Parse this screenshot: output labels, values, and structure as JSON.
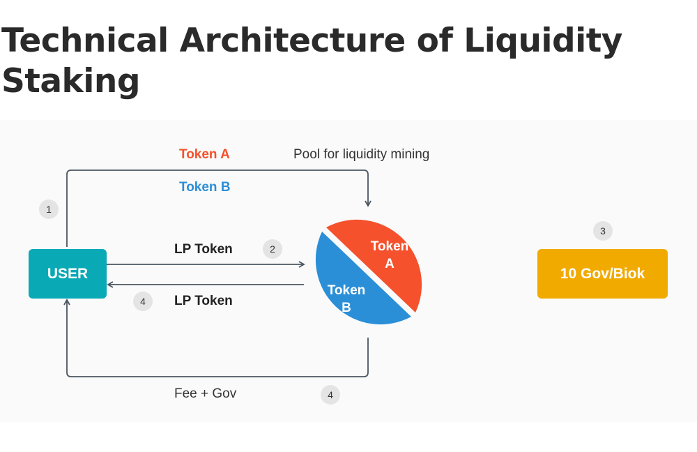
{
  "title": "Technical Architecture of Liquidity Staking",
  "labels": {
    "token_a": "Token A",
    "token_b": "Token B",
    "pool": "Pool for liquidity mining",
    "lp_token_out": "LP Token",
    "lp_token_in": "LP Token",
    "fee_gov": "Fee + Gov"
  },
  "badges": {
    "step1": "1",
    "step2": "2",
    "step3": "3",
    "step4a": "4",
    "step4b": "4"
  },
  "nodes": {
    "user": "USER",
    "gov": "10 Gov/Biok",
    "pool_token_a_line1": "Token",
    "pool_token_a_line2": "A",
    "pool_token_b_line1": "Token",
    "pool_token_b_line2": "B"
  },
  "colors": {
    "token_a": "#f4512c",
    "token_b": "#2b8fd8",
    "user": "#0aa9b6",
    "gov": "#f1aa00",
    "line": "#4a5561"
  }
}
